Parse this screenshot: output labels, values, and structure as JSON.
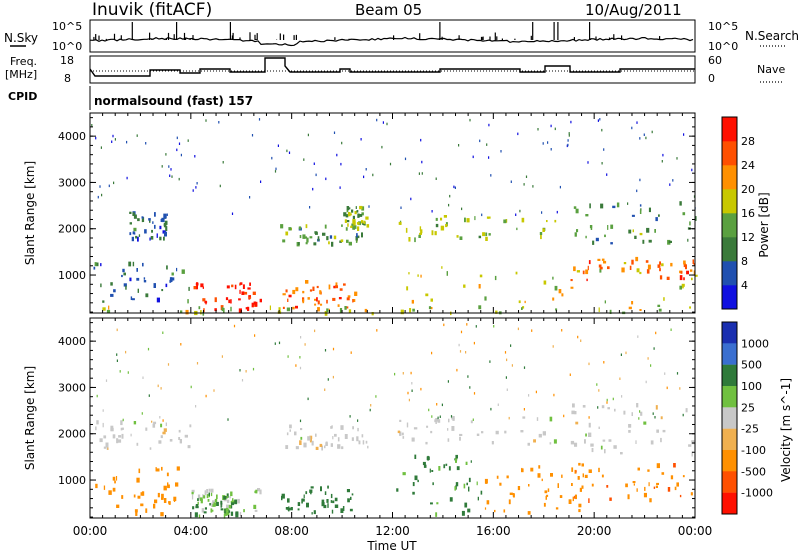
{
  "header": {
    "station": "Inuvik (fitACF)",
    "beam": "Beam 05",
    "date": "10/Aug/2011"
  },
  "noise_panel": {
    "left_label": "N.Sky",
    "right_label": "N.Search",
    "left_ticks": [
      "10^5",
      "10^0"
    ],
    "right_ticks": [
      "10^5",
      "10^0"
    ]
  },
  "freq_panel": {
    "left_label_1": "Freq.",
    "left_label_2": "[MHz]",
    "right_label": "Nave",
    "left_ticks": [
      "18",
      "8"
    ],
    "right_ticks": [
      "60",
      "0"
    ]
  },
  "cpid": {
    "label": "CPID",
    "mode": "normalsound (fast) 157"
  },
  "chart_data": [
    {
      "type": "heatmap",
      "title": "",
      "xlabel": "Time UT",
      "ylabel": "Slant Range [km]",
      "x_ticks": [
        "00:00",
        "04:00",
        "08:00",
        "12:00",
        "16:00",
        "20:00",
        "00:00"
      ],
      "y_ticks": [
        1000,
        2000,
        3000,
        4000
      ],
      "xlim_hours": [
        0,
        24
      ],
      "ylim_km": [
        180,
        4500
      ],
      "colorbar_label": "Power [dB]",
      "colorbar_ticks": [
        4,
        8,
        12,
        16,
        20,
        24,
        28
      ],
      "colorbar_colors": [
        "#1010e0",
        "#2050b0",
        "#3a7a3a",
        "#5aa040",
        "#c8c800",
        "#ff9000",
        "#ff5000",
        "#ff1000"
      ],
      "blobs": [
        {
          "x0": 0.1,
          "x1": 4.0,
          "y0": 400,
          "y1": 1300,
          "value": 8
        },
        {
          "x0": 4.0,
          "x1": 6.8,
          "y0": 200,
          "y1": 850,
          "value": 30
        },
        {
          "x0": 7.5,
          "x1": 10.5,
          "y0": 300,
          "y1": 900,
          "value": 26
        },
        {
          "x0": 7.5,
          "x1": 11.0,
          "y0": 1700,
          "y1": 2100,
          "value": 12
        },
        {
          "x0": 10.0,
          "x1": 11.0,
          "y0": 2000,
          "y1": 2500,
          "value": 14
        },
        {
          "x0": 12.0,
          "x1": 18.5,
          "y0": 1800,
          "y1": 2300,
          "value": 16
        },
        {
          "x0": 12.0,
          "x1": 24.0,
          "y0": 300,
          "y1": 1200,
          "value": 18
        },
        {
          "x0": 19.0,
          "x1": 24.0,
          "y0": 900,
          "y1": 1400,
          "value": 24
        },
        {
          "x0": 19.0,
          "x1": 24.0,
          "y0": 1600,
          "y1": 2600,
          "value": 12
        },
        {
          "x0": 1.5,
          "x1": 3.0,
          "y0": 1800,
          "y1": 2400,
          "value": 8
        },
        {
          "x0": 0.1,
          "x1": 24.0,
          "y0": 200,
          "y1": 350,
          "value": 16
        }
      ]
    },
    {
      "type": "heatmap",
      "title": "",
      "xlabel": "Time UT",
      "ylabel": "Slant Range [km]",
      "x_ticks": [
        "00:00",
        "04:00",
        "08:00",
        "12:00",
        "16:00",
        "20:00",
        "00:00"
      ],
      "y_ticks": [
        1000,
        2000,
        3000,
        4000
      ],
      "xlim_hours": [
        0,
        24
      ],
      "ylim_km": [
        180,
        4500
      ],
      "colorbar_label": "Velocity [m s^-1]",
      "colorbar_ticks": [
        "1000",
        "500",
        "100",
        "25",
        "-25",
        "-100",
        "-500",
        "-1000"
      ],
      "colorbar_colors": [
        "#1a2fb0",
        "#3a6fd0",
        "#2f7a3a",
        "#70c040",
        "#c8c8c8",
        "#f0b050",
        "#ff9000",
        "#ff5000",
        "#ff1000"
      ],
      "blobs": [
        {
          "x0": 0.2,
          "x1": 3.5,
          "y0": 300,
          "y1": 1300,
          "value": -200
        },
        {
          "x0": 0.2,
          "x1": 4.0,
          "y0": 1700,
          "y1": 2300,
          "value": 0
        },
        {
          "x0": 4.0,
          "x1": 6.8,
          "y0": 250,
          "y1": 850,
          "value": 20
        },
        {
          "x0": 4.0,
          "x1": 5.8,
          "y0": 300,
          "y1": 800,
          "value": 120
        },
        {
          "x0": 7.5,
          "x1": 10.5,
          "y0": 300,
          "y1": 900,
          "value": 300
        },
        {
          "x0": 7.5,
          "x1": 11.0,
          "y0": 1700,
          "y1": 2200,
          "value": 0
        },
        {
          "x0": 12.0,
          "x1": 15.5,
          "y0": 300,
          "y1": 1600,
          "value": 150
        },
        {
          "x0": 12.0,
          "x1": 18.5,
          "y0": 1800,
          "y1": 2400,
          "value": 0
        },
        {
          "x0": 15.5,
          "x1": 19.5,
          "y0": 300,
          "y1": 1400,
          "value": -200
        },
        {
          "x0": 19.0,
          "x1": 24.0,
          "y0": 600,
          "y1": 1400,
          "value": -400
        },
        {
          "x0": 19.0,
          "x1": 24.0,
          "y0": 1600,
          "y1": 2700,
          "value": 0
        }
      ]
    }
  ]
}
